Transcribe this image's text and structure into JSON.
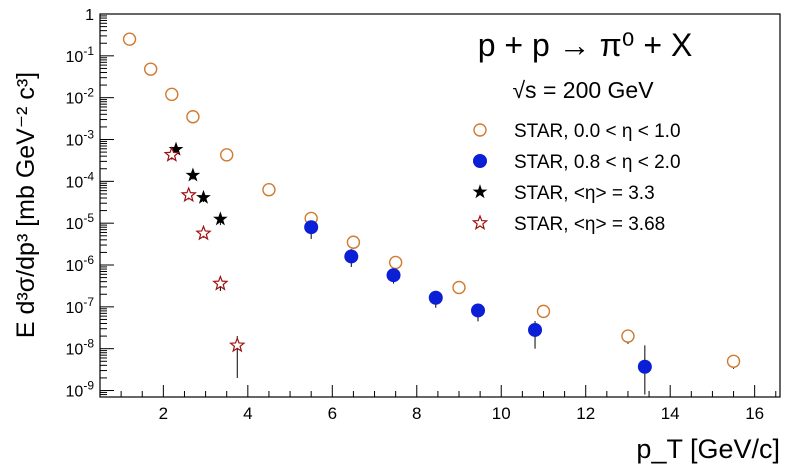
{
  "chart_data": {
    "type": "scatter",
    "title": "p + p → π⁰ + X",
    "subtitle": "√s = 200 GeV",
    "xlabel": "p_T [GeV/c]",
    "ylabel": "E d³σ/dp³ [mb GeV⁻² c³]",
    "xlim": [
      0.5,
      16.6
    ],
    "ylim": [
      7e-10,
      1
    ],
    "yscale": "log",
    "grid": false,
    "legend_position": "right",
    "x_ticks": [
      2,
      4,
      6,
      8,
      10,
      12,
      14,
      16
    ],
    "y_ticks": [
      {
        "value": 1,
        "mant": "1",
        "exp": ""
      },
      {
        "value": 0.1,
        "mant": "10",
        "exp": "-1"
      },
      {
        "value": 0.01,
        "mant": "10",
        "exp": "-2"
      },
      {
        "value": 0.001,
        "mant": "10",
        "exp": "-3"
      },
      {
        "value": 0.0001,
        "mant": "10",
        "exp": "-4"
      },
      {
        "value": 1e-05,
        "mant": "10",
        "exp": "-5"
      },
      {
        "value": 1e-06,
        "mant": "10",
        "exp": "-6"
      },
      {
        "value": 1e-07,
        "mant": "10",
        "exp": "-7"
      },
      {
        "value": 1e-08,
        "mant": "10",
        "exp": "-8"
      },
      {
        "value": 1e-09,
        "mant": "10",
        "exp": "-9"
      }
    ],
    "series": [
      {
        "name": "STAR, 0.0 < η < 1.0",
        "marker": "open-circle",
        "color": "#d07a30",
        "x": [
          1.2,
          1.7,
          2.2,
          2.7,
          3.5,
          4.5,
          5.5,
          6.5,
          7.5,
          9.0,
          11.0,
          13.0,
          15.5
        ],
        "y": [
          0.25,
          0.048,
          0.012,
          0.0035,
          0.00043,
          6.3e-05,
          1.3e-05,
          3.5e-06,
          1.15e-06,
          2.9e-07,
          7.8e-08,
          2e-08,
          5e-09
        ],
        "err_low": [
          null,
          null,
          null,
          null,
          0.00033,
          4.8e-05,
          null,
          2.8e-06,
          9.6e-07,
          null,
          6e-08,
          1.3e-08,
          3.3e-09
        ],
        "err_high": [
          null,
          null,
          null,
          null,
          0.00055,
          7.8e-05,
          null,
          4.2e-06,
          1.35e-06,
          null,
          9e-08,
          2.6e-08,
          6.6e-09
        ]
      },
      {
        "name": "STAR, 0.8 < η < 2.0",
        "marker": "filled-circle",
        "color": "#0a1fd6",
        "x": [
          5.5,
          6.45,
          7.45,
          8.45,
          9.45,
          10.8,
          13.4
        ],
        "y": [
          8e-06,
          1.6e-06,
          5.7e-07,
          1.65e-07,
          8.2e-08,
          2.8e-08,
          3.7e-09
        ],
        "err_low": [
          4.2e-06,
          9e-07,
          3.6e-07,
          9.5e-08,
          4.5e-08,
          1e-08,
          8e-10
        ],
        "err_high": [
          1.3e-05,
          2.4e-06,
          8e-07,
          2.4e-07,
          1.2e-07,
          4.6e-08,
          1.2e-08
        ]
      },
      {
        "name": "STAR, <η> = 3.3",
        "marker": "filled-star",
        "color": "#000000",
        "x": [
          2.3,
          2.7,
          2.95,
          3.35
        ],
        "y": [
          0.00058,
          0.00014,
          4.1e-05,
          1.25e-05
        ],
        "err_low": [
          0.00045,
          0.00011,
          3.2e-05,
          9e-06
        ],
        "err_high": [
          0.00072,
          0.00017,
          5e-05,
          1.6e-05
        ]
      },
      {
        "name": "STAR, <η> = 3.68",
        "marker": "open-star",
        "color": "#a01010",
        "x": [
          2.2,
          2.6,
          2.95,
          3.35,
          3.75
        ],
        "y": [
          0.00043,
          4.7e-05,
          5.7e-06,
          3.6e-07,
          1.2e-08
        ],
        "err_low": [
          0.00033,
          3.7e-05,
          4.5e-06,
          2.4e-07,
          2e-09
        ],
        "err_high": [
          0.00053,
          5.7e-05,
          7e-06,
          5e-07,
          2e-08
        ]
      }
    ]
  }
}
